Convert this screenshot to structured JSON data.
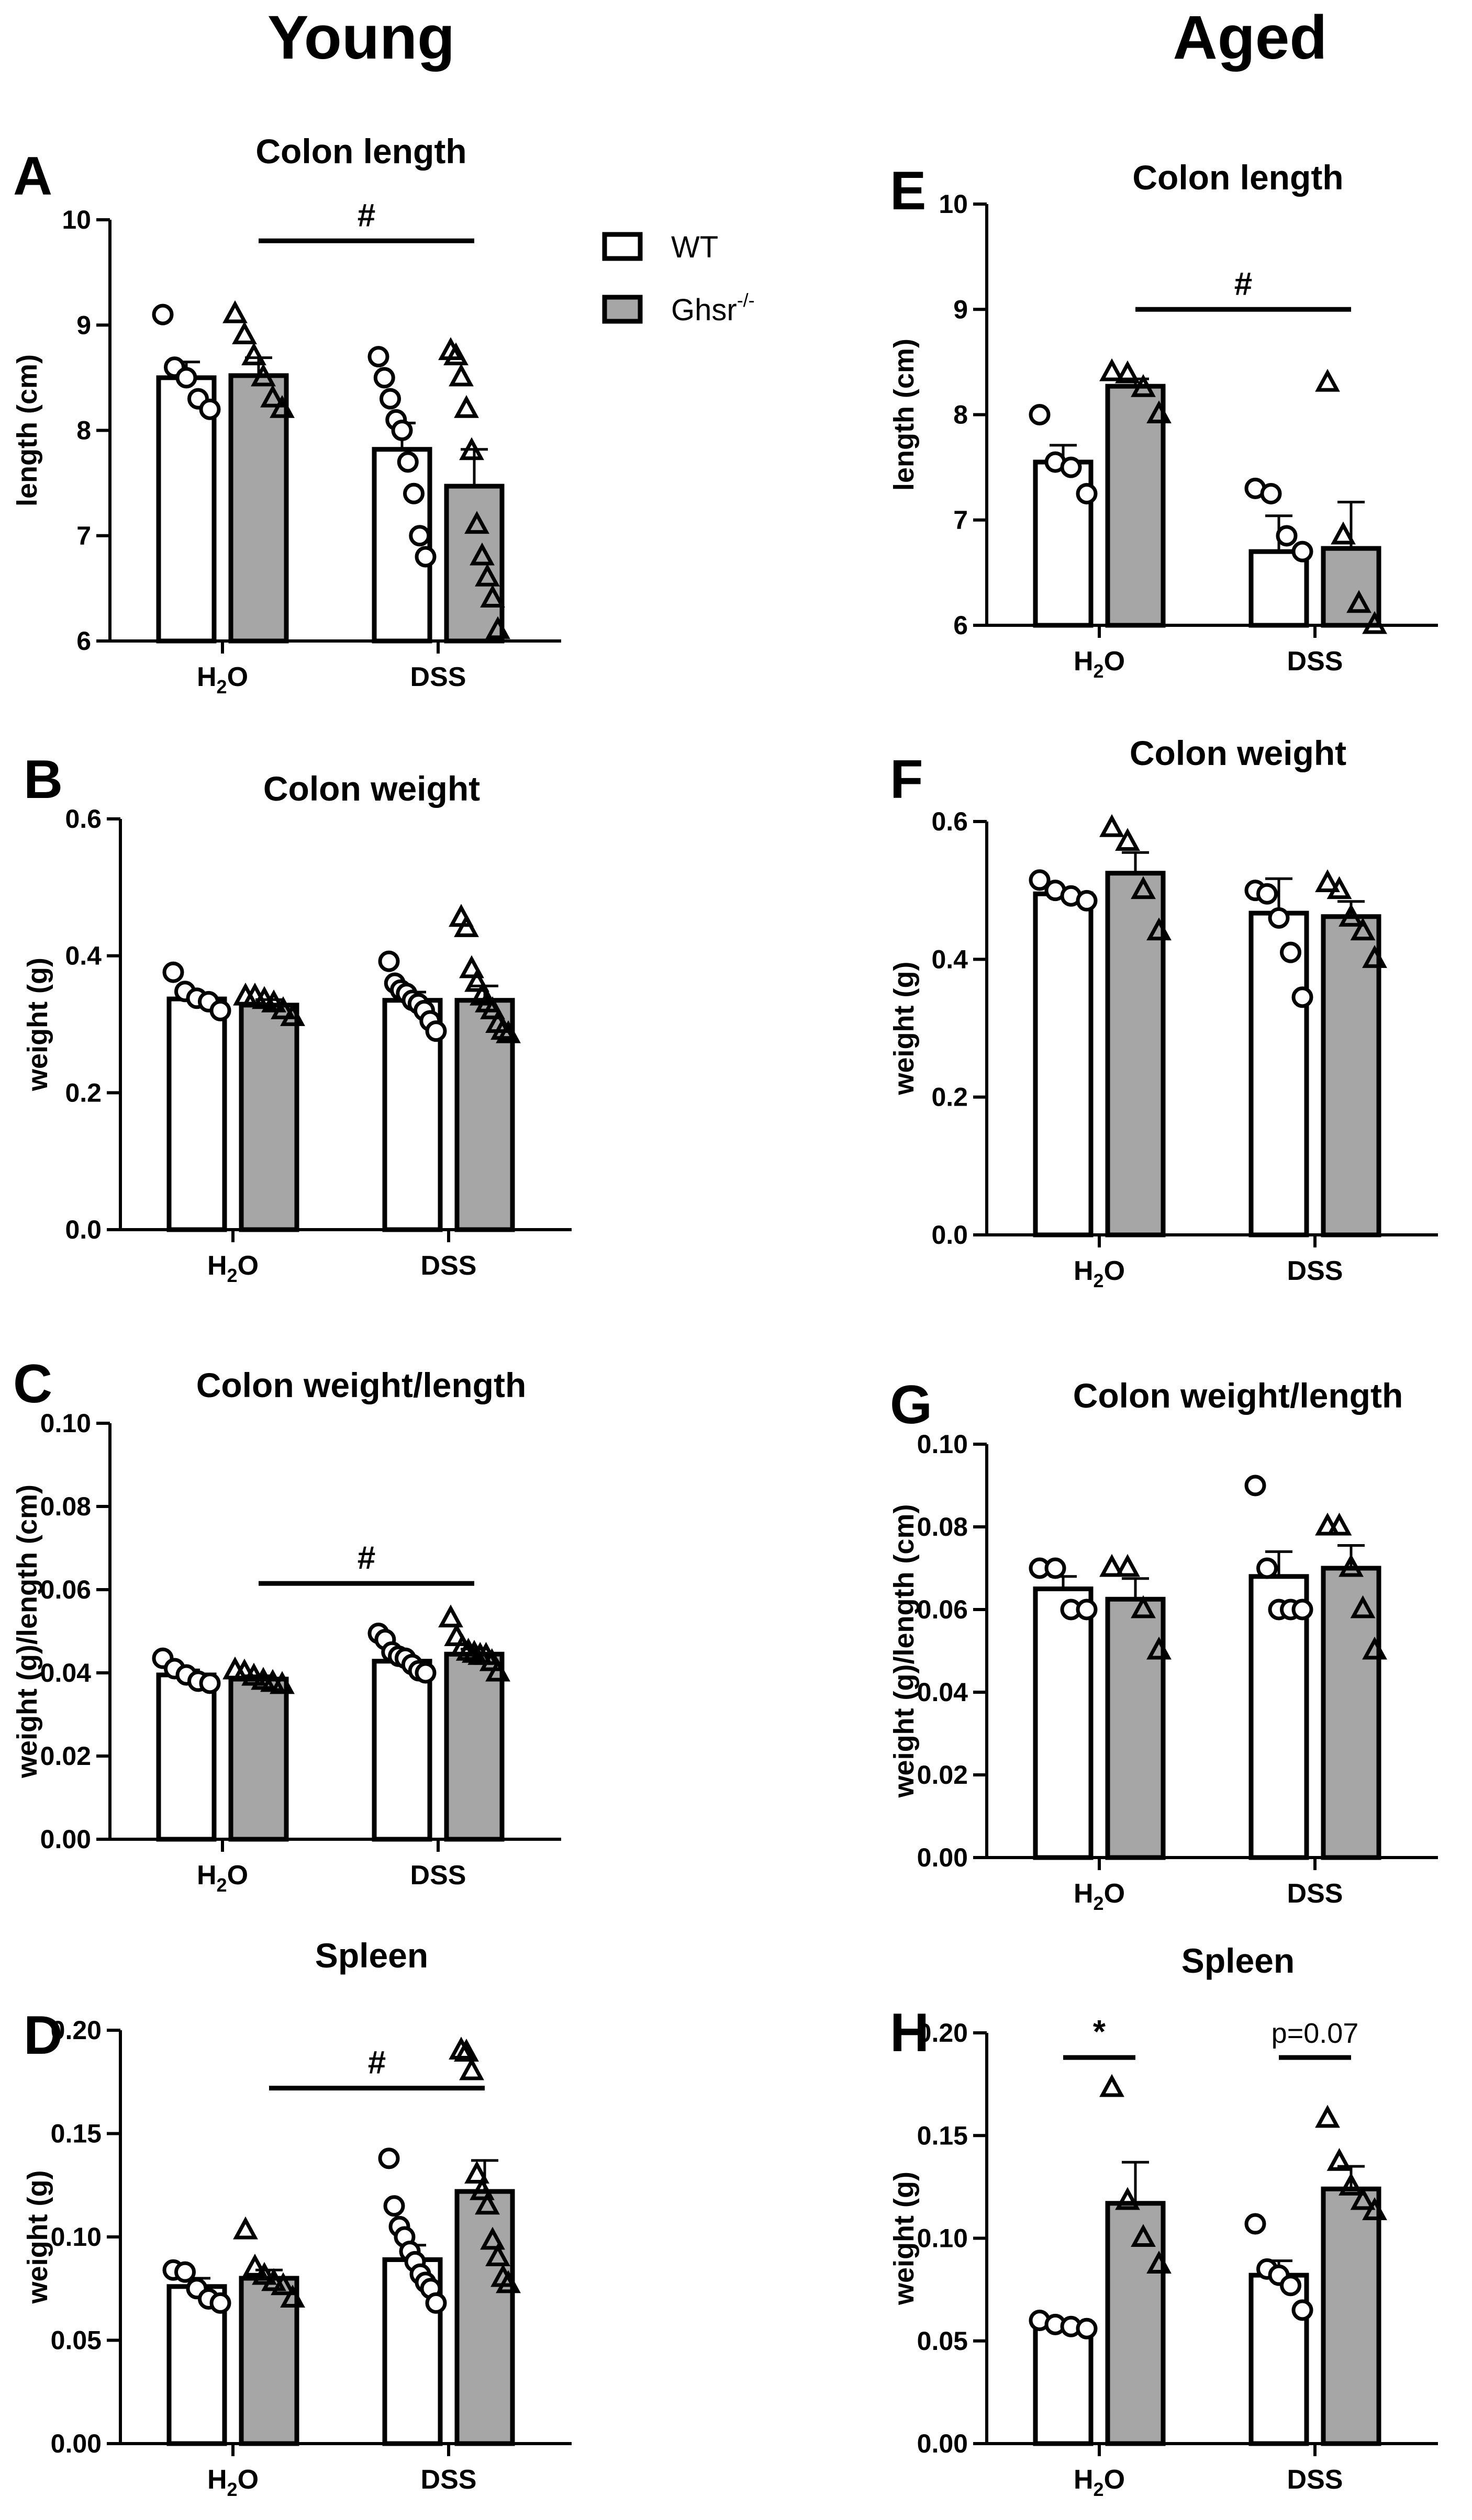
{
  "column_headers": {
    "left": "Young",
    "right": "Aged"
  },
  "legend": {
    "wt_label": "WT",
    "ko_label": "Ghsr",
    "ko_superscript": "-/-",
    "wt_color": "#ffffff",
    "ko_color": "#a6a6a6"
  },
  "colors": {
    "axis": "#000000",
    "wt_fill": "#ffffff",
    "ko_fill": "#a6a6a6"
  },
  "chart_data": [
    {
      "panel": "A",
      "type": "bar",
      "group": "Young",
      "title": "Colon length",
      "ylabel": "length (cm)",
      "ylim": [
        6,
        10
      ],
      "yticks": [
        6,
        7,
        8,
        9,
        10
      ],
      "decimals": 0,
      "categories": [
        {
          "base": "H",
          "sub": "2",
          "rest": "O"
        },
        {
          "base": "DSS",
          "sub": "",
          "rest": ""
        }
      ],
      "series": [
        {
          "name": "WT",
          "marker": "circle",
          "means": [
            8.5,
            7.82
          ],
          "sem": [
            0.15,
            0.25
          ],
          "points": [
            [
              9.1,
              8.6,
              8.5,
              8.3,
              8.2
            ],
            [
              8.7,
              8.5,
              8.3,
              8.1,
              8.0,
              7.7,
              7.4,
              7.0,
              6.8
            ]
          ]
        },
        {
          "name": "Ghsr-/-",
          "marker": "triangle",
          "means": [
            8.52,
            7.47
          ],
          "sem": [
            0.17,
            0.35
          ],
          "points": [
            [
              9.1,
              8.9,
              8.7,
              8.5,
              8.3,
              8.2
            ],
            [
              8.75,
              8.7,
              8.5,
              8.2,
              7.8,
              7.1,
              6.8,
              6.6,
              6.4,
              6.1
            ]
          ]
        }
      ],
      "annotations": [
        {
          "text": "#",
          "from": [
            0,
            1
          ],
          "to": [
            1,
            1
          ],
          "y": 9.8
        }
      ]
    },
    {
      "panel": "B",
      "type": "bar",
      "group": "Young",
      "title": "Colon weight",
      "ylabel": "weight (g)",
      "ylim": [
        0,
        0.6
      ],
      "yticks": [
        0.0,
        0.2,
        0.4,
        0.6
      ],
      "decimals": 1,
      "categories": [
        {
          "base": "H",
          "sub": "2",
          "rest": "O"
        },
        {
          "base": "DSS",
          "sub": "",
          "rest": ""
        }
      ],
      "series": [
        {
          "name": "WT",
          "marker": "circle",
          "means": [
            0.337,
            0.335
          ],
          "sem": [
            0.009,
            0.012
          ],
          "points": [
            [
              0.376,
              0.348,
              0.338,
              0.333,
              0.32
            ],
            [
              0.392,
              0.36,
              0.35,
              0.345,
              0.335,
              0.33,
              0.32,
              0.305,
              0.29
            ]
          ]
        },
        {
          "name": "Ghsr-/-",
          "marker": "triangle",
          "means": [
            0.328,
            0.335
          ],
          "sem": [
            0.008,
            0.021
          ],
          "points": [
            [
              0.34,
              0.34,
              0.335,
              0.33,
              0.32,
              0.31
            ],
            [
              0.455,
              0.44,
              0.38,
              0.36,
              0.34,
              0.33,
              0.32,
              0.3,
              0.29,
              0.285
            ]
          ]
        }
      ],
      "annotations": []
    },
    {
      "panel": "C",
      "type": "bar",
      "group": "Young",
      "title": "Colon weight/length",
      "ylabel": "weight (g)/length (cm)",
      "ylim": [
        0,
        0.1
      ],
      "yticks": [
        0.0,
        0.02,
        0.04,
        0.06,
        0.08,
        0.1
      ],
      "decimals": 2,
      "categories": [
        {
          "base": "H",
          "sub": "2",
          "rest": "O"
        },
        {
          "base": "DSS",
          "sub": "",
          "rest": ""
        }
      ],
      "series": [
        {
          "name": "WT",
          "marker": "circle",
          "means": [
            0.0395,
            0.0428
          ],
          "sem": [
            0.0012,
            0.0013
          ],
          "points": [
            [
              0.0435,
              0.041,
              0.0395,
              0.038,
              0.0375
            ],
            [
              0.0495,
              0.048,
              0.045,
              0.044,
              0.0435,
              0.042,
              0.0405,
              0.04
            ]
          ]
        },
        {
          "name": "Ghsr-/-",
          "marker": "triangle",
          "means": [
            0.0385,
            0.0445
          ],
          "sem": [
            0.0008,
            0.0012
          ],
          "points": [
            [
              0.0405,
              0.04,
              0.039,
              0.038,
              0.0375,
              0.037
            ],
            [
              0.053,
              0.0485,
              0.046,
              0.045,
              0.0445,
              0.044,
              0.044,
              0.0425,
              0.04
            ]
          ]
        }
      ],
      "annotations": [
        {
          "text": "#",
          "from": [
            0,
            1
          ],
          "to": [
            1,
            1
          ],
          "y": 0.0615
        }
      ]
    },
    {
      "panel": "D",
      "type": "bar",
      "group": "Young",
      "title": "Spleen",
      "ylabel": "weight (g)",
      "ylim": [
        0,
        0.2
      ],
      "yticks": [
        0.0,
        0.05,
        0.1,
        0.15,
        0.2
      ],
      "decimals": 2,
      "categories": [
        {
          "base": "H",
          "sub": "2",
          "rest": "O"
        },
        {
          "base": "DSS",
          "sub": "",
          "rest": ""
        }
      ],
      "series": [
        {
          "name": "WT",
          "marker": "circle",
          "means": [
            0.076,
            0.089
          ],
          "sem": [
            0.004,
            0.007
          ],
          "points": [
            [
              0.084,
              0.083,
              0.075,
              0.07,
              0.068
            ],
            [
              0.138,
              0.115,
              0.105,
              0.1,
              0.093,
              0.088,
              0.082,
              0.078,
              0.075,
              0.068
            ]
          ]
        },
        {
          "name": "Ghsr-/-",
          "marker": "triangle",
          "means": [
            0.08,
            0.122
          ],
          "sem": [
            0.004,
            0.015
          ],
          "points": [
            [
              0.103,
              0.085,
              0.081,
              0.078,
              0.076,
              0.07
            ],
            [
              0.19,
              0.189,
              0.18,
              0.13,
              0.122,
              0.115,
              0.098,
              0.09,
              0.08,
              0.077
            ]
          ]
        }
      ],
      "annotations": [
        {
          "text": "#",
          "from": [
            0,
            1
          ],
          "to": [
            1,
            1
          ],
          "y": 0.172
        }
      ]
    },
    {
      "panel": "E",
      "type": "bar",
      "group": "Aged",
      "title": "Colon length",
      "ylabel": "length (cm)",
      "ylim": [
        6,
        10
      ],
      "yticks": [
        6,
        7,
        8,
        9,
        10
      ],
      "decimals": 0,
      "categories": [
        {
          "base": "H",
          "sub": "2",
          "rest": "O"
        },
        {
          "base": "DSS",
          "sub": "",
          "rest": ""
        }
      ],
      "series": [
        {
          "name": "WT",
          "marker": "circle",
          "means": [
            7.55,
            6.7
          ],
          "sem": [
            0.16,
            0.34
          ],
          "points": [
            [
              8.0,
              7.55,
              7.5,
              7.25
            ],
            [
              7.3,
              7.25,
              6.85,
              6.7
            ]
          ]
        },
        {
          "name": "Ghsr-/-",
          "marker": "triangle",
          "means": [
            8.27,
            6.73
          ],
          "sem": [
            0.07,
            0.44
          ],
          "points": [
            [
              8.4,
              8.38,
              8.25,
              8.0
            ],
            [
              8.3,
              6.85,
              6.2,
              6.0
            ]
          ]
        }
      ],
      "annotations": [
        {
          "text": "#",
          "from": [
            0,
            1
          ],
          "to": [
            1,
            1
          ],
          "y": 9.0
        }
      ]
    },
    {
      "panel": "F",
      "type": "bar",
      "group": "Aged",
      "title": "Colon weight",
      "ylabel": "weight (g)",
      "ylim": [
        0,
        0.6
      ],
      "yticks": [
        0.0,
        0.2,
        0.4,
        0.6
      ],
      "decimals": 1,
      "categories": [
        {
          "base": "H",
          "sub": "2",
          "rest": "O"
        },
        {
          "base": "DSS",
          "sub": "",
          "rest": ""
        }
      ],
      "series": [
        {
          "name": "WT",
          "marker": "circle",
          "means": [
            0.495,
            0.467
          ],
          "sem": [
            0.008,
            0.05
          ],
          "points": [
            [
              0.515,
              0.5,
              0.492,
              0.485
            ],
            [
              0.5,
              0.495,
              0.46,
              0.41,
              0.345
            ]
          ]
        },
        {
          "name": "Ghsr-/-",
          "marker": "triangle",
          "means": [
            0.525,
            0.462
          ],
          "sem": [
            0.03,
            0.022
          ],
          "points": [
            [
              0.59,
              0.57,
              0.5,
              0.44
            ],
            [
              0.51,
              0.5,
              0.46,
              0.44,
              0.4
            ]
          ]
        }
      ],
      "annotations": []
    },
    {
      "panel": "G",
      "type": "bar",
      "group": "Aged",
      "title": "Colon weight/length",
      "ylabel": "weight (g)/length (cm)",
      "ylim": [
        0,
        0.1
      ],
      "yticks": [
        0.0,
        0.02,
        0.04,
        0.06,
        0.08,
        0.1
      ],
      "decimals": 2,
      "categories": [
        {
          "base": "H",
          "sub": "2",
          "rest": "O"
        },
        {
          "base": "DSS",
          "sub": "",
          "rest": ""
        }
      ],
      "series": [
        {
          "name": "WT",
          "marker": "circle",
          "means": [
            0.065,
            0.068
          ],
          "sem": [
            0.003,
            0.006
          ],
          "points": [
            [
              0.07,
              0.07,
              0.06,
              0.06
            ],
            [
              0.09,
              0.07,
              0.06,
              0.06,
              0.06
            ]
          ]
        },
        {
          "name": "Ghsr-/-",
          "marker": "triangle",
          "means": [
            0.0625,
            0.07
          ],
          "sem": [
            0.005,
            0.0055
          ],
          "points": [
            [
              0.07,
              0.07,
              0.06,
              0.05
            ],
            [
              0.08,
              0.08,
              0.07,
              0.06,
              0.05
            ]
          ]
        }
      ],
      "annotations": []
    },
    {
      "panel": "H",
      "type": "bar",
      "group": "Aged",
      "title": "Spleen",
      "ylabel": "weight (g)",
      "ylim": [
        0,
        0.2
      ],
      "yticks": [
        0.0,
        0.05,
        0.1,
        0.15,
        0.2
      ],
      "decimals": 2,
      "categories": [
        {
          "base": "H",
          "sub": "2",
          "rest": "O"
        },
        {
          "base": "DSS",
          "sub": "",
          "rest": ""
        }
      ],
      "series": [
        {
          "name": "WT",
          "marker": "circle",
          "means": [
            0.058,
            0.082
          ],
          "sem": [
            0.002,
            0.007
          ],
          "points": [
            [
              0.06,
              0.058,
              0.057,
              0.056
            ],
            [
              0.107,
              0.085,
              0.082,
              0.077,
              0.065
            ]
          ]
        },
        {
          "name": "Ghsr-/-",
          "marker": "triangle",
          "means": [
            0.117,
            0.124
          ],
          "sem": [
            0.02,
            0.011
          ],
          "points": [
            [
              0.173,
              0.118,
              0.1,
              0.087
            ],
            [
              0.158,
              0.137,
              0.125,
              0.118,
              0.113
            ]
          ]
        }
      ],
      "annotations": [
        {
          "text": "*",
          "from": [
            0,
            0
          ],
          "to": [
            0,
            1
          ],
          "y": 0.188
        },
        {
          "text": "p=0.07",
          "from": [
            1,
            0
          ],
          "to": [
            1,
            1
          ],
          "y": 0.188
        }
      ]
    }
  ]
}
